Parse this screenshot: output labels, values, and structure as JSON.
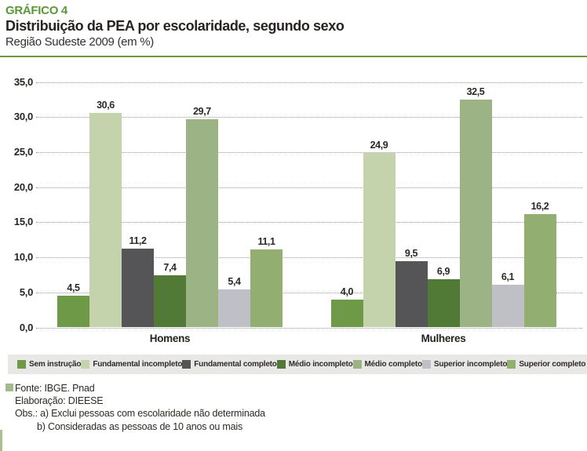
{
  "header": {
    "kicker": "GRÁFICO 4",
    "title": "Distribuição da PEA por escolaridade, segundo sexo",
    "subtitle": "Região Sudeste 2009 (em %)"
  },
  "accent_colors": {
    "kicker_green": "#5a9737",
    "rule_green": "#68993e",
    "legend_background": "#e8e8e6",
    "footer_marker_green": "#a2bb87",
    "edge_bar_green": "#a9c28c"
  },
  "chart_data": {
    "type": "bar",
    "title": "Distribuição da PEA por escolaridade, segundo sexo",
    "subtitle": "Região Sudeste 2009 (em %)",
    "categories": [
      "Homens",
      "Mulheres"
    ],
    "series": [
      {
        "name": "Sem instrução",
        "color": "#6e9a48",
        "values": [
          4.5,
          4.0
        ]
      },
      {
        "name": "Fundamental incompleto",
        "color": "#c4d3ab",
        "values": [
          30.6,
          24.9
        ]
      },
      {
        "name": "Fundamental completo",
        "color": "#555456",
        "values": [
          11.2,
          9.5
        ]
      },
      {
        "name": "Médio incompleto",
        "color": "#517a36",
        "values": [
          7.4,
          6.9
        ]
      },
      {
        "name": "Médio completo",
        "color": "#9cb485",
        "values": [
          29.7,
          32.5
        ]
      },
      {
        "name": "Superior incompleto",
        "color": "#bfc0c5",
        "values": [
          5.4,
          6.1
        ]
      },
      {
        "name": "Superior completo",
        "color": "#92ae70",
        "values": [
          11.1,
          16.2
        ]
      }
    ],
    "value_labels": [
      [
        "4,5",
        "30,6",
        "11,2",
        "7,4",
        "29,7",
        "5,4",
        "11,1"
      ],
      [
        "4,0",
        "24,9",
        "9,5",
        "6,9",
        "32,5",
        "6,1",
        "16,2"
      ]
    ],
    "ylim": [
      0,
      35
    ],
    "ytick_step": 5,
    "yticks": [
      "35,0",
      "30,0",
      "25,0",
      "20,0",
      "15,0",
      "10,0",
      "5,0",
      "0,0"
    ],
    "grid": "horizontal dotted",
    "legend_position": "bottom"
  },
  "footer": {
    "fonte": "Fonte: IBGE. Pnad",
    "elaboracao": "Elaboração: DIEESE",
    "obs_a": "Obs.: a) Exclui pessoas com escolaridade não determinada",
    "obs_b": "b) Consideradas as pessoas de 10 anos ou mais"
  }
}
